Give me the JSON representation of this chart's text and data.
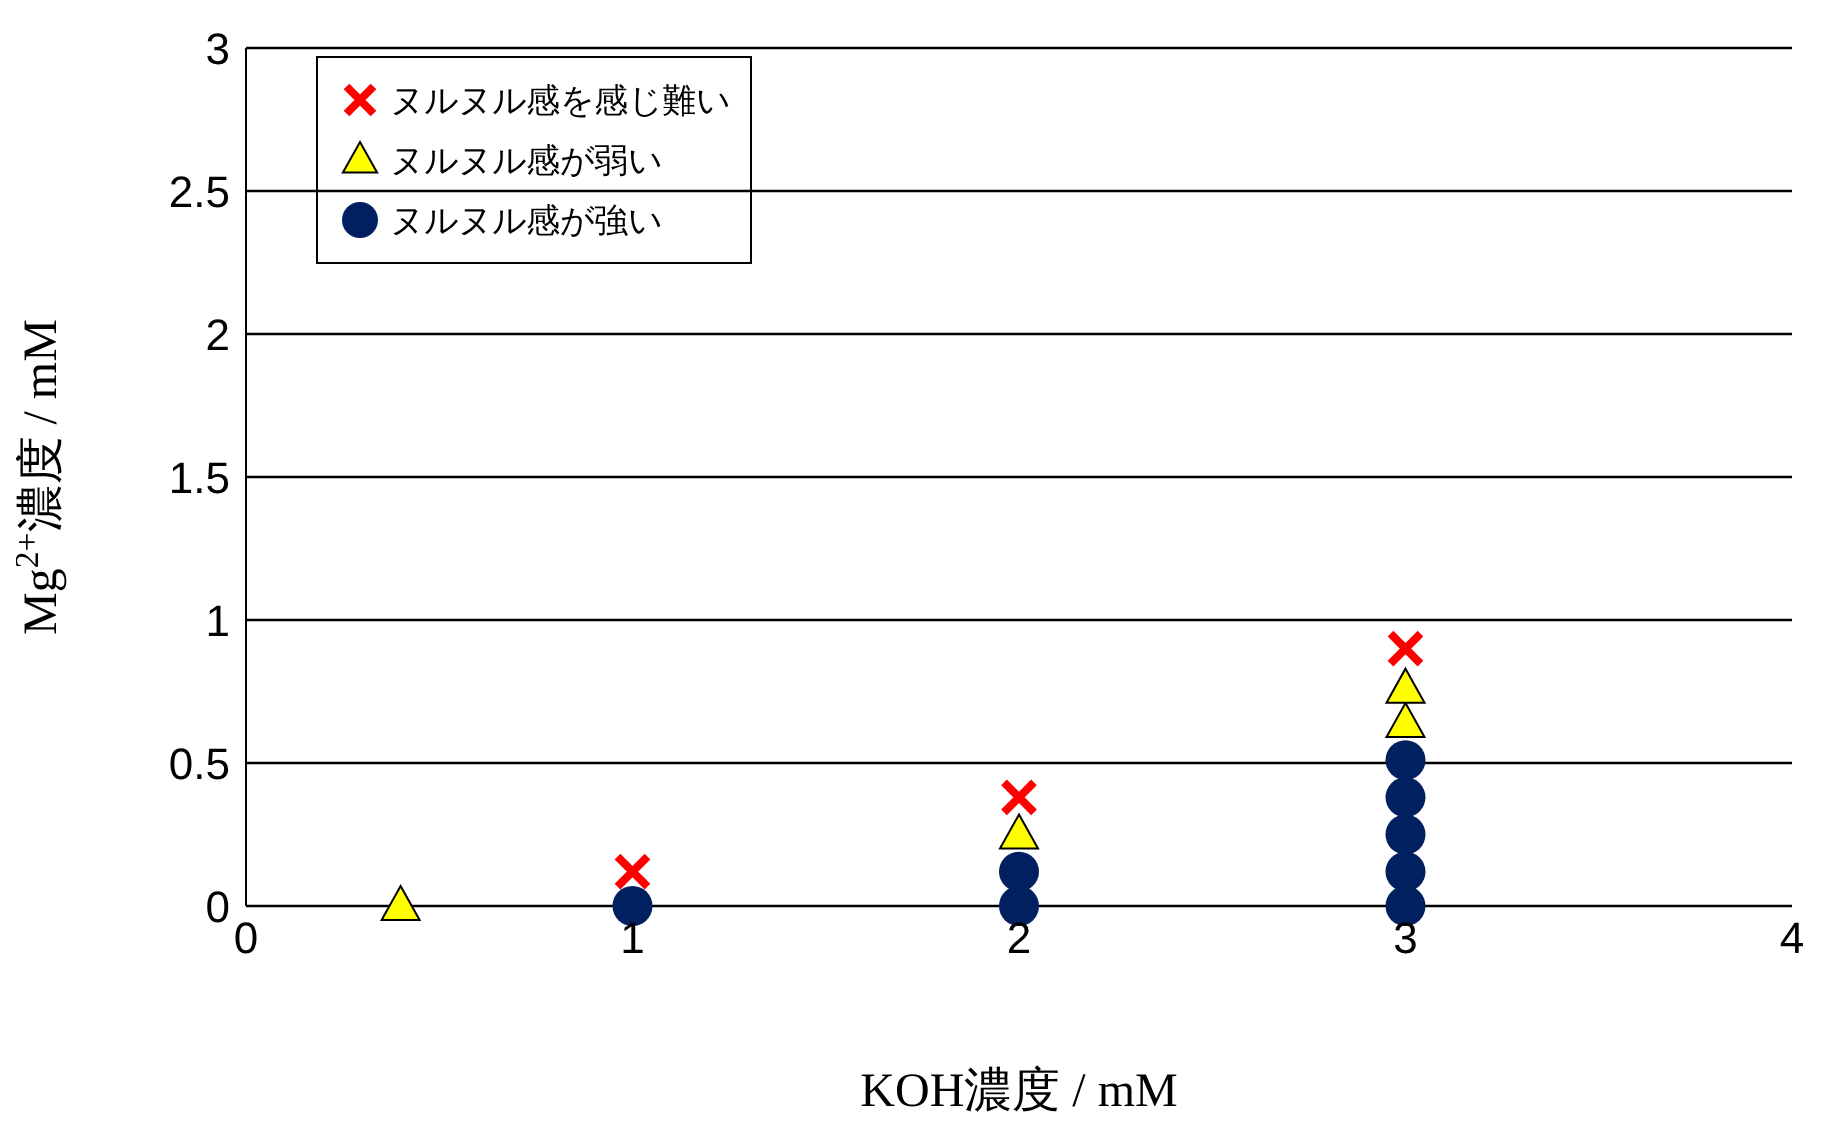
{
  "chart_data": {
    "type": "scatter",
    "xlabel": "KOH濃度 / mM",
    "ylabel": "Mg$^{2+}$濃度 / mM",
    "xlim": [
      0,
      4
    ],
    "xticks": [
      0,
      1,
      2,
      3,
      4
    ],
    "ylim": [
      0,
      3
    ],
    "yticks": [
      0,
      0.5,
      1,
      1.5,
      2,
      2.5,
      3
    ],
    "grid": "y",
    "legend": "top left",
    "series": [
      {
        "name": "ヌルヌル感を感じ難い",
        "color": "#ff0000",
        "marker": "cross",
        "x": [
          1,
          2,
          3
        ],
        "values": [
          0.12,
          0.38,
          0.9
        ]
      },
      {
        "name": "ヌルヌル感が弱い",
        "color": "#ffff00",
        "marker": "triangle",
        "x": [
          0.4,
          2,
          3,
          3
        ],
        "values": [
          0,
          0.25,
          0.64,
          0.76
        ]
      },
      {
        "name": "ヌルヌル感が強い",
        "color": "#002060",
        "marker": "circle",
        "x": [
          1,
          2,
          2,
          3,
          3,
          3,
          3,
          3
        ],
        "values": [
          0,
          0,
          0.12,
          0,
          0.12,
          0.25,
          0.38,
          0.51
        ]
      }
    ]
  }
}
